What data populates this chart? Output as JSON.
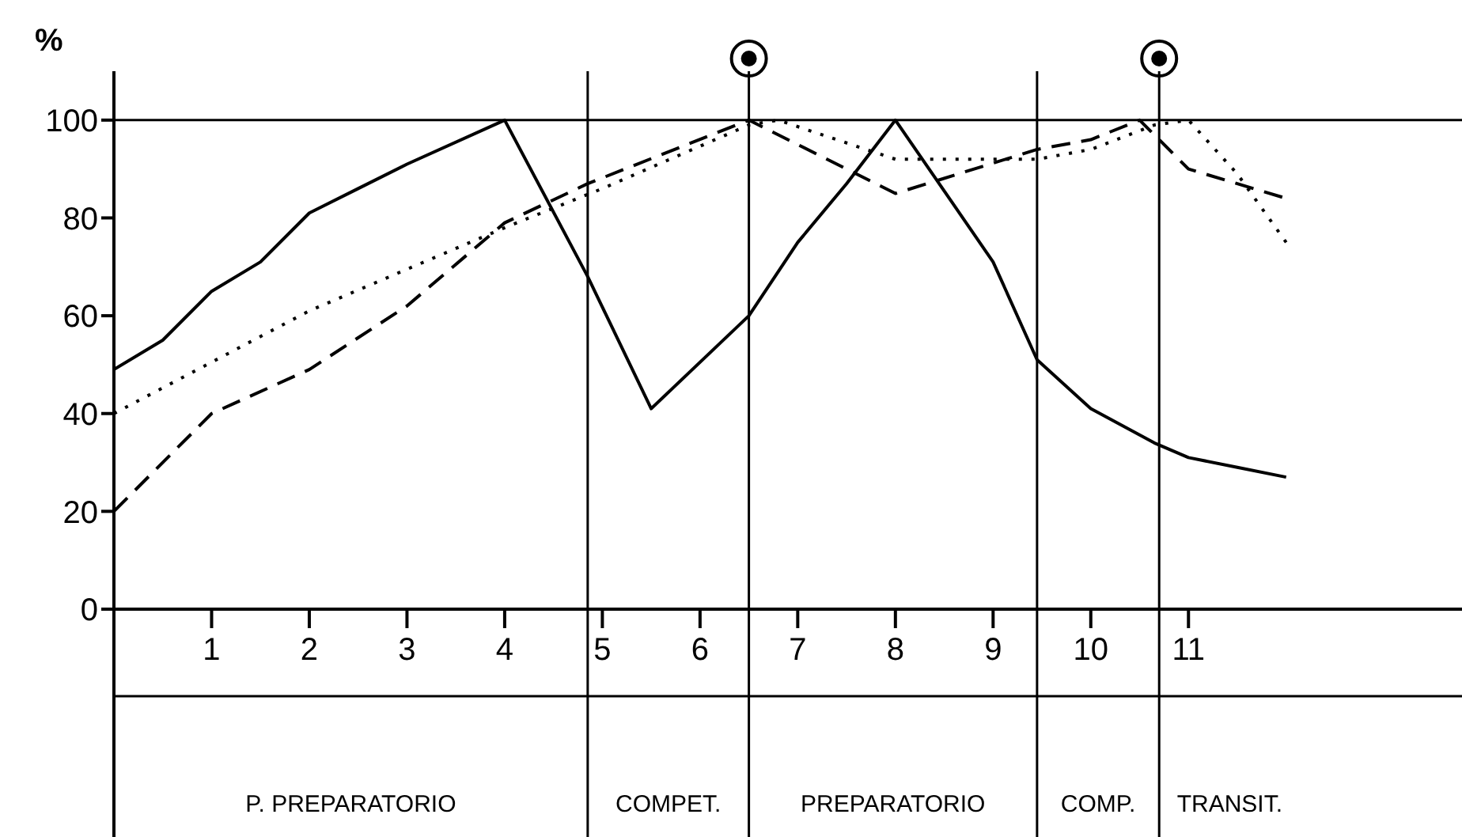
{
  "chart_data": {
    "type": "line",
    "ylabel": "%",
    "xlim": [
      0,
      13.8
    ],
    "xticks": [
      1,
      2,
      3,
      4,
      5,
      6,
      7,
      8,
      9,
      10,
      11
    ],
    "ylim": [
      0,
      110
    ],
    "yticks": [
      0,
      20,
      40,
      60,
      80,
      100
    ],
    "marker": "none",
    "series": [
      {
        "color": "#000000",
        "line_style": "solid",
        "x": [
          0,
          0.5,
          1,
          1.5,
          2,
          2.5,
          3,
          4,
          4.85,
          5.5,
          6.5,
          7,
          7.5,
          8,
          9,
          9.45,
          10,
          10.65,
          11,
          11.5,
          12
        ],
        "values": [
          49,
          55,
          65,
          71,
          81,
          86,
          91,
          100,
          68,
          41,
          60,
          75,
          87,
          100,
          71,
          51,
          41,
          34,
          31,
          29,
          27
        ]
      },
      {
        "color": "#000000",
        "line_style": "dashed",
        "x": [
          0,
          1,
          2,
          3,
          4,
          4.85,
          6.5,
          8,
          9.45,
          10,
          10.5,
          11,
          12
        ],
        "values": [
          20,
          40,
          49,
          62,
          79,
          87,
          100,
          85,
          94,
          96,
          100,
          90,
          84
        ]
      },
      {
        "color": "#000000",
        "line_style": "dotted",
        "x": [
          0,
          2,
          4,
          5,
          6.5,
          6.8,
          8,
          9.45,
          10,
          10.65,
          11,
          11.5,
          12
        ],
        "values": [
          40,
          61,
          78,
          86,
          99,
          100,
          92,
          92,
          94,
          99,
          100,
          89,
          75
        ]
      }
    ],
    "ref_lines": [
      {
        "axis": "y",
        "value": 100
      },
      {
        "axis": "x",
        "value": 4.85
      },
      {
        "axis": "x",
        "value": 6.5
      },
      {
        "axis": "x",
        "value": 9.45
      },
      {
        "axis": "x",
        "value": 10.7
      }
    ],
    "annotations": [
      "P. PREPARATORIO",
      "COMPET.",
      "PREPARATORIO",
      "COMP.",
      "TRANSIT."
    ]
  }
}
